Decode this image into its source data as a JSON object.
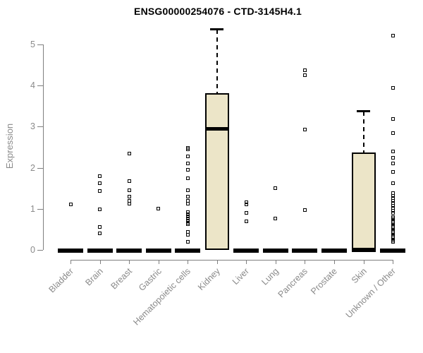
{
  "header": {
    "title": "ENSG00000254076 - CTD-3145H4.1"
  },
  "chart_data": {
    "type": "boxplot",
    "title": "ENSG00000254076 - CTD-3145H4.1",
    "xlabel": "",
    "ylabel": "Expression",
    "ylim": [
      0,
      5.5
    ],
    "yticks": [
      0,
      1,
      2,
      3,
      4,
      5
    ],
    "grid": false,
    "legend": "none",
    "box_fill": "#ece5c8",
    "box_border": "#000000",
    "axis_color": "#7f7f7f",
    "text_color": "#8a8a8a",
    "categories": [
      "Bladder",
      "Brain",
      "Breast",
      "Gastric",
      "Hematopoietic cells",
      "Kidney",
      "Liver",
      "Lung",
      "Pancreas",
      "Prostate",
      "Skin",
      "Unknown / Other"
    ],
    "series": [
      {
        "name": "Bladder",
        "q1": 0,
        "median": 0,
        "q3": 0,
        "whisker_low": 0,
        "whisker_high": 0,
        "outliers": [
          1.1
        ]
      },
      {
        "name": "Brain",
        "q1": 0,
        "median": 0,
        "q3": 0,
        "whisker_low": 0,
        "whisker_high": 0,
        "outliers": [
          1.8,
          1.62,
          1.44,
          0.98,
          0.55,
          0.4
        ]
      },
      {
        "name": "Breast",
        "q1": 0,
        "median": 0,
        "q3": 0,
        "whisker_low": 0,
        "whisker_high": 0,
        "outliers": [
          2.35,
          1.67,
          1.46,
          1.29,
          1.2,
          1.13
        ]
      },
      {
        "name": "Gastric",
        "q1": 0,
        "median": 0,
        "q3": 0,
        "whisker_low": 0,
        "whisker_high": 0,
        "outliers": [
          1.0
        ]
      },
      {
        "name": "Hematopoietic cells",
        "q1": 0,
        "median": 0,
        "q3": 0,
        "whisker_low": 0,
        "whisker_high": 0,
        "outliers": [
          2.48,
          2.44,
          2.28,
          2.1,
          1.95,
          1.75,
          1.45,
          1.3,
          1.2,
          1.12,
          0.92,
          0.87,
          0.82,
          0.77,
          0.72,
          0.67,
          0.62,
          0.44,
          0.37,
          0.2
        ]
      },
      {
        "name": "Kidney",
        "q1": 0,
        "median": 2.95,
        "q3": 3.82,
        "whisker_low": 0,
        "whisker_high": 5.36,
        "outliers": []
      },
      {
        "name": "Liver",
        "q1": 0,
        "median": 0,
        "q3": 0,
        "whisker_low": 0,
        "whisker_high": 0,
        "outliers": [
          1.16,
          1.1,
          0.9,
          0.7
        ]
      },
      {
        "name": "Lung",
        "q1": 0,
        "median": 0,
        "q3": 0,
        "whisker_low": 0,
        "whisker_high": 0,
        "outliers": [
          1.51,
          0.76
        ]
      },
      {
        "name": "Pancreas",
        "q1": 0,
        "median": 0,
        "q3": 0,
        "whisker_low": 0,
        "whisker_high": 0,
        "outliers": [
          4.38,
          4.25,
          2.93,
          0.97
        ]
      },
      {
        "name": "Prostate",
        "q1": 0,
        "median": 0,
        "q3": 0,
        "whisker_low": 0,
        "whisker_high": 0,
        "outliers": []
      },
      {
        "name": "Skin",
        "q1": 0,
        "median": 0,
        "q3": 2.37,
        "whisker_low": 0,
        "whisker_high": 3.37,
        "outliers": []
      },
      {
        "name": "Unknown / Other",
        "q1": 0,
        "median": 0,
        "q3": 0,
        "whisker_low": 0,
        "whisker_high": 0,
        "outliers": [
          5.22,
          3.95,
          3.18,
          2.85,
          2.4,
          2.24,
          2.1,
          1.9,
          1.63,
          1.38,
          1.32,
          1.26,
          1.2,
          1.14,
          1.08,
          1.02,
          0.96,
          0.9,
          0.8,
          0.76,
          0.72,
          0.68,
          0.64,
          0.6,
          0.56,
          0.52,
          0.48,
          0.44,
          0.4,
          0.36,
          0.32,
          0.28,
          0.24,
          0.2
        ]
      }
    ]
  }
}
